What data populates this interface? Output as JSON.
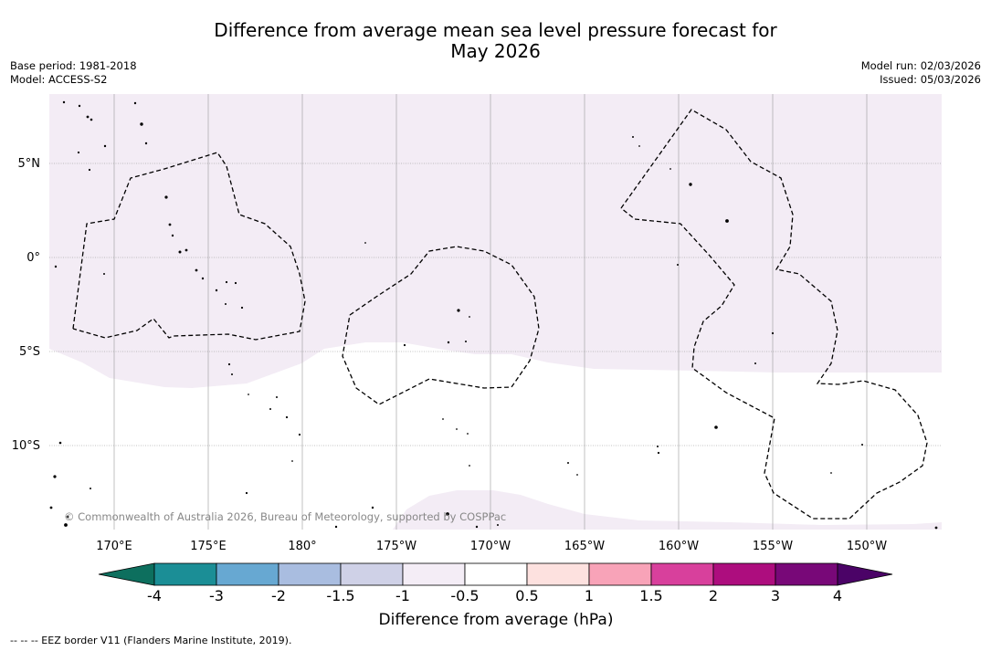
{
  "title": {
    "line1": "Difference from average mean sea level pressure forecast for",
    "line2": "May 2026"
  },
  "info_left": {
    "base_period": "Base period: 1981-2018",
    "model": "Model: ACCESS-S2"
  },
  "info_right": {
    "model_run": "Model run: 02/03/2026",
    "issued": "Issued: 05/03/2026"
  },
  "map": {
    "lon_labels": [
      "170°E",
      "175°E",
      "180°",
      "175°W",
      "170°W",
      "165°W",
      "160°W",
      "155°W",
      "150°W"
    ],
    "lat_labels": [
      "5°N",
      "0°",
      "5°S",
      "10°S"
    ],
    "copyright": "© Commonwealth of Australia 2026, Bureau of Meteorology, supported by COSPPac",
    "shading_colors": {
      "light_positive": "#f3ecf5",
      "neutral": "#ffffff"
    }
  },
  "colorbar": {
    "title": "Difference from average (hPa)",
    "tick_labels": [
      "-4",
      "-3",
      "-2",
      "-1.5",
      "-1",
      "-0.5",
      "0.5",
      "1",
      "1.5",
      "2",
      "3",
      "4"
    ],
    "colors": [
      "#1b8e96",
      "#67a8d2",
      "#a9bde0",
      "#cfd1e7",
      "#f4edf6",
      "#ffffff",
      "#fde1df",
      "#f8a3b8",
      "#d8409c",
      "#ad0d7e",
      "#780878"
    ],
    "under_color": "#0d6f5e",
    "over_color": "#4b0367"
  },
  "legend": {
    "eez_text": "-- -- -- EEZ border V11 (Flanders Marine Institute, 2019)."
  }
}
